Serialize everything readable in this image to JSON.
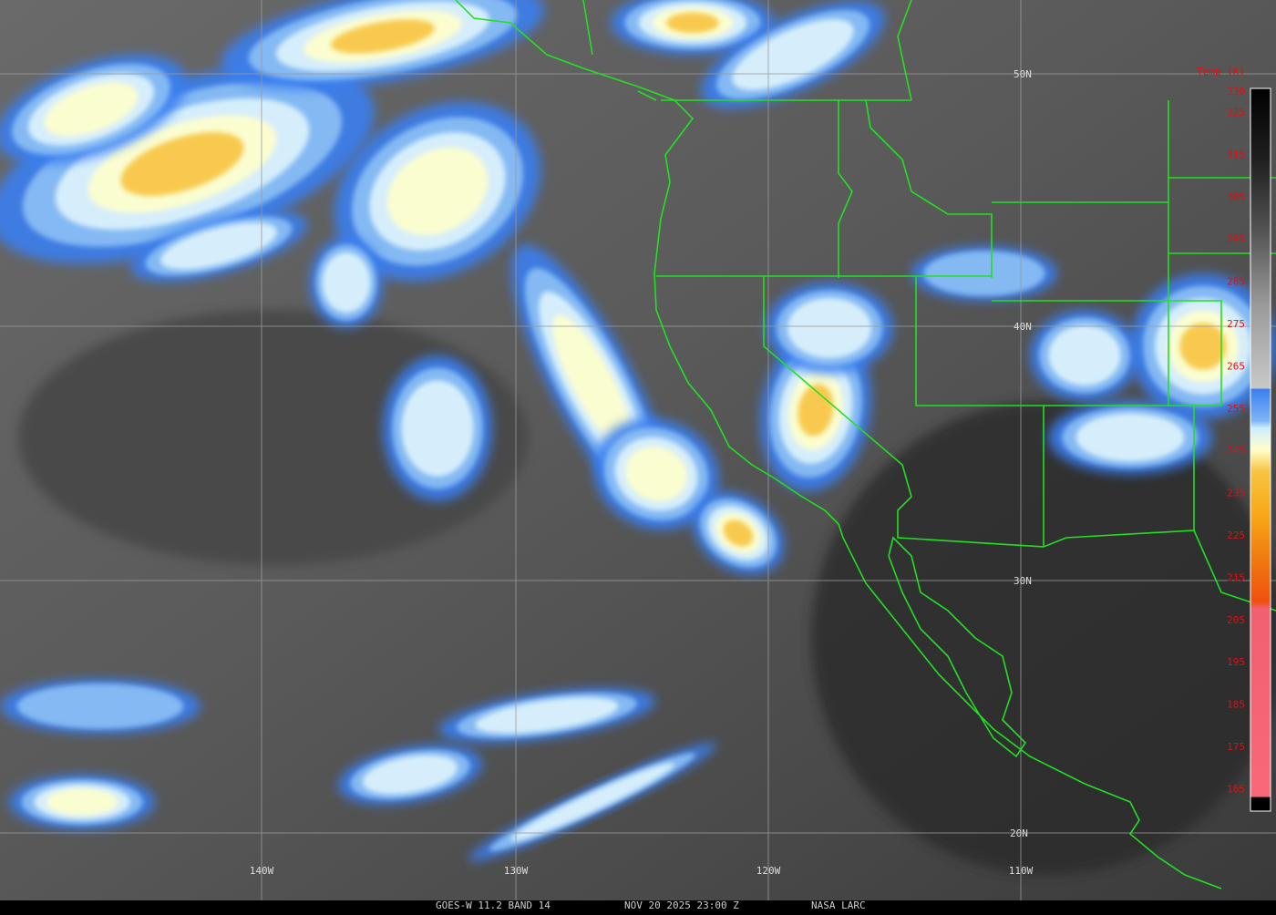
{
  "map": {
    "latitude_labels": [
      "50N",
      "40N",
      "30N",
      "20N"
    ],
    "longitude_labels": [
      "140W",
      "130W",
      "120W",
      "110W"
    ]
  },
  "legend": {
    "title": "Temp (K)",
    "ticks": [
      330,
      325,
      315,
      305,
      295,
      285,
      275,
      265,
      255,
      245,
      235,
      225,
      215,
      205,
      195,
      185,
      175,
      165
    ]
  },
  "footer": {
    "satellite": "GOES-W 11.2 BAND 14",
    "time": "NOV 20 2025 23:00 Z",
    "source": "NASA LARC"
  }
}
